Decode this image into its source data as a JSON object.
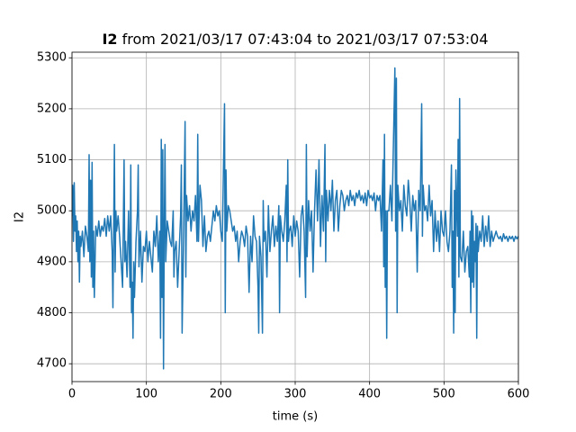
{
  "chart_data": {
    "type": "line",
    "title_variable": "I2",
    "title": "from 2021/03/17 07:43:04 to 2021/03/17 07:53:04",
    "xlabel": "time (s)",
    "ylabel": "I2",
    "color": "#1f77b4",
    "grid": true,
    "xlim": [
      0,
      600
    ],
    "ylim": [
      4665,
      5311
    ],
    "xticks": [
      0,
      100,
      200,
      300,
      400,
      500,
      600
    ],
    "yticks": [
      4700,
      4800,
      4900,
      5000,
      5100,
      5200,
      5300
    ],
    "x": [
      0,
      1,
      2,
      3,
      4,
      5,
      6,
      7,
      8,
      9,
      10,
      11,
      12,
      14,
      16,
      18,
      20,
      22,
      23,
      24,
      25,
      26,
      27,
      28,
      29,
      30,
      32,
      34,
      36,
      38,
      40,
      42,
      44,
      46,
      48,
      50,
      52,
      54,
      55,
      56,
      57,
      58,
      59,
      60,
      62,
      64,
      66,
      68,
      70,
      71,
      72,
      74,
      76,
      78,
      79,
      80,
      81,
      82,
      83,
      84,
      86,
      88,
      89,
      90,
      92,
      94,
      96,
      98,
      100,
      102,
      104,
      106,
      108,
      110,
      112,
      114,
      116,
      118,
      119,
      120,
      121,
      122,
      123,
      124,
      125,
      126,
      128,
      130,
      132,
      134,
      136,
      137,
      138,
      140,
      142,
      144,
      146,
      147,
      148,
      150,
      152,
      153,
      154,
      156,
      158,
      160,
      162,
      164,
      166,
      168,
      169,
      170,
      172,
      174,
      176,
      178,
      180,
      182,
      184,
      186,
      188,
      190,
      192,
      194,
      196,
      198,
      200,
      202,
      205,
      206,
      207,
      208,
      210,
      212,
      214,
      216,
      218,
      220,
      222,
      224,
      226,
      228,
      230,
      232,
      234,
      236,
      238,
      240,
      242,
      244,
      246,
      248,
      250,
      251,
      252,
      254,
      256,
      257,
      258,
      260,
      262,
      264,
      266,
      268,
      270,
      272,
      274,
      276,
      278,
      279,
      280,
      282,
      284,
      286,
      288,
      289,
      290,
      291,
      292,
      294,
      296,
      298,
      300,
      302,
      304,
      306,
      308,
      310,
      312,
      314,
      315,
      316,
      318,
      320,
      322,
      324,
      326,
      328,
      330,
      332,
      334,
      336,
      338,
      340,
      341,
      342,
      344,
      346,
      348,
      350,
      352,
      354,
      356,
      358,
      360,
      362,
      364,
      366,
      368,
      370,
      372,
      374,
      376,
      378,
      380,
      382,
      384,
      386,
      388,
      390,
      392,
      394,
      396,
      398,
      400,
      402,
      404,
      406,
      408,
      410,
      412,
      414,
      416,
      418,
      419,
      420,
      421,
      422,
      423,
      424,
      426,
      428,
      430,
      432,
      434,
      435,
      436,
      437,
      438,
      440,
      442,
      444,
      446,
      448,
      450,
      452,
      454,
      456,
      458,
      460,
      462,
      464,
      466,
      468,
      470,
      471,
      472,
      474,
      476,
      478,
      480,
      482,
      484,
      486,
      488,
      490,
      492,
      494,
      496,
      498,
      500,
      502,
      504,
      506,
      508,
      510,
      511,
      512,
      513,
      514,
      515,
      516,
      518,
      519,
      520,
      521,
      522,
      524,
      526,
      528,
      530,
      532,
      534,
      535,
      536,
      537,
      538,
      539,
      540,
      541,
      542,
      543,
      544,
      545,
      546,
      548,
      550,
      552,
      554,
      556,
      558,
      560,
      562,
      564,
      566,
      568,
      570,
      572,
      574,
      576,
      578,
      580,
      582,
      584,
      586,
      588,
      590,
      592,
      594,
      596,
      598,
      600
    ],
    "values": [
      4990,
      5050,
      4940,
      5055,
      4960,
      4990,
      4920,
      4980,
      4900,
      4960,
      4860,
      4950,
      4930,
      4960,
      4910,
      4970,
      4950,
      4920,
      5110,
      4900,
      5060,
      4870,
      5095,
      4850,
      4960,
      4830,
      4970,
      4950,
      4980,
      4950,
      4970,
      4960,
      4985,
      4950,
      4990,
      4960,
      4990,
      4920,
      4810,
      4960,
      5130,
      4880,
      5000,
      4960,
      4990,
      4950,
      4900,
      4850,
      5100,
      4900,
      4940,
      4870,
      5000,
      4850,
      5090,
      4800,
      4860,
      4750,
      4900,
      4830,
      4940,
      5000,
      5090,
      4890,
      4960,
      4860,
      4930,
      4920,
      4960,
      4900,
      4940,
      4910,
      4880,
      4960,
      4930,
      4990,
      4900,
      4960,
      4750,
      5140,
      4830,
      5120,
      4690,
      4960,
      5130,
      4900,
      4980,
      4960,
      4940,
      4930,
      5000,
      4870,
      4920,
      4940,
      4850,
      4920,
      4990,
      5090,
      4760,
      4950,
      5175,
      4870,
      5030,
      4980,
      5010,
      4960,
      5000,
      4980,
      5030,
      4940,
      5150,
      4940,
      5050,
      5020,
      4930,
      4990,
      4920,
      4950,
      4960,
      4940,
      4970,
      5000,
      4980,
      5010,
      4990,
      5000,
      4960,
      4940,
      5210,
      4800,
      5080,
      4960,
      5010,
      5000,
      4980,
      4960,
      4970,
      4940,
      4960,
      4900,
      4940,
      4960,
      4950,
      4930,
      4970,
      4950,
      4840,
      4950,
      4900,
      4990,
      4950,
      4940,
      4850,
      4760,
      4950,
      4910,
      4760,
      5020,
      4940,
      4960,
      4870,
      5010,
      4920,
      4960,
      4990,
      4930,
      4970,
      4940,
      5010,
      4800,
      4990,
      4960,
      4940,
      4980,
      5050,
      4900,
      5100,
      4940,
      4960,
      4970,
      4930,
      4990,
      4950,
      4980,
      4960,
      4870,
      4990,
      5010,
      4960,
      4830,
      5130,
      4910,
      5020,
      4960,
      5000,
      4880,
      5000,
      5080,
      4980,
      5100,
      4930,
      5030,
      4960,
      5130,
      4900,
      5040,
      4980,
      5040,
      5000,
      5060,
      4960,
      5020,
      5040,
      4960,
      5010,
      5040,
      5030,
      5000,
      5020,
      5030,
      5010,
      5040,
      5020,
      5030,
      5010,
      5035,
      5025,
      5040,
      5020,
      5030,
      5015,
      5035,
      5010,
      5040,
      5025,
      5030,
      5020,
      5035,
      5000,
      5030,
      5020,
      5030,
      4960,
      5100,
      4890,
      5150,
      4850,
      5000,
      4750,
      5000,
      5000,
      5050,
      4980,
      5130,
      5280,
      4960,
      5260,
      4800,
      5050,
      5000,
      5020,
      4960,
      5050,
      5010,
      4990,
      5060,
      5020,
      4960,
      5030,
      5000,
      5020,
      4880,
      5040,
      5000,
      5210,
      4950,
      5050,
      5000,
      5010,
      4980,
      5050,
      4990,
      5020,
      4920,
      5000,
      4940,
      4980,
      4920,
      5000,
      4960,
      4950,
      5000,
      4940,
      4920,
      4960,
      5090,
      4850,
      4960,
      4760,
      5040,
      4800,
      5080,
      4950,
      5140,
      4870,
      5220,
      4910,
      4900,
      4960,
      4880,
      4920,
      4930,
      4870,
      4960,
      4800,
      5000,
      4860,
      4990,
      4850,
      4940,
      4900,
      4975,
      4750,
      4970,
      4920,
      4960,
      4940,
      4990,
      4930,
      4970,
      4940,
      4990,
      4930,
      4960,
      4940,
      4950,
      4960,
      4950,
      4945,
      4950,
      4940,
      4955,
      4945,
      4950,
      4940,
      4950,
      4945,
      4950,
      4940,
      4950,
      4945,
      4950
    ]
  }
}
